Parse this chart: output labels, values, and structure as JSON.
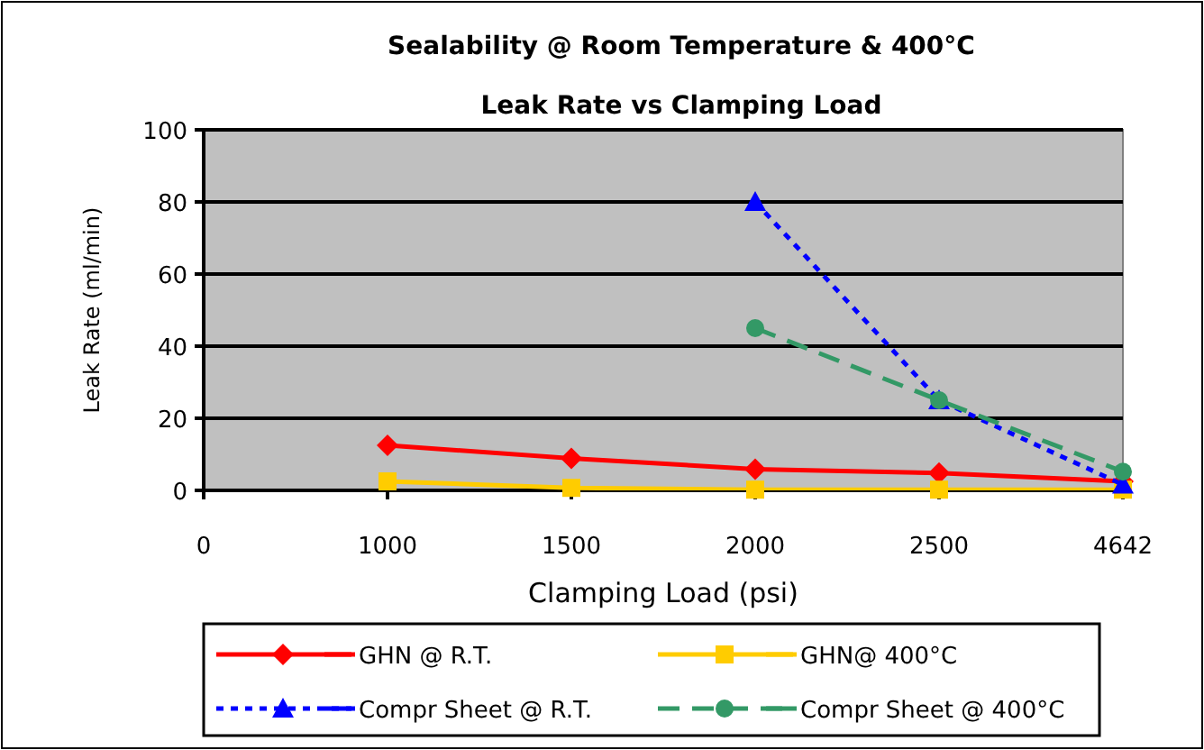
{
  "chart_data": {
    "type": "line",
    "title": "Sealability @ Room Temperature & 400°C",
    "subtitle": "Leak Rate vs Clamping Load",
    "xlabel": "Clamping Load (psi)",
    "ylabel": "Leak Rate (ml/min)",
    "categories": [
      "0",
      "1000",
      "1500",
      "2000",
      "2500",
      "4642"
    ],
    "ylim": [
      0,
      100
    ],
    "yticks": [
      0,
      20,
      40,
      60,
      80,
      100
    ],
    "grid": "y",
    "legend": "bottom",
    "series": [
      {
        "name": "GHN @ R.T.",
        "color": "#ff0000",
        "marker": "diamond",
        "line_style": "solid",
        "values": [
          null,
          12.5,
          8.9,
          5.9,
          4.8,
          2.5
        ]
      },
      {
        "name": "GHN@ 400°C",
        "color": "#ffcc00",
        "marker": "square",
        "line_style": "solid",
        "values": [
          null,
          2.5,
          0.7,
          0.2,
          0.2,
          0.2
        ]
      },
      {
        "name": "Compr Sheet @ R.T.",
        "color": "#0000ff",
        "marker": "triangle",
        "line_style": "dotted",
        "values": [
          null,
          null,
          null,
          80,
          25,
          1.6
        ]
      },
      {
        "name": "Compr Sheet @ 400°C",
        "color": "#339966",
        "marker": "circle",
        "line_style": "dashed",
        "values": [
          null,
          null,
          null,
          45,
          25,
          5.2
        ]
      }
    ]
  }
}
